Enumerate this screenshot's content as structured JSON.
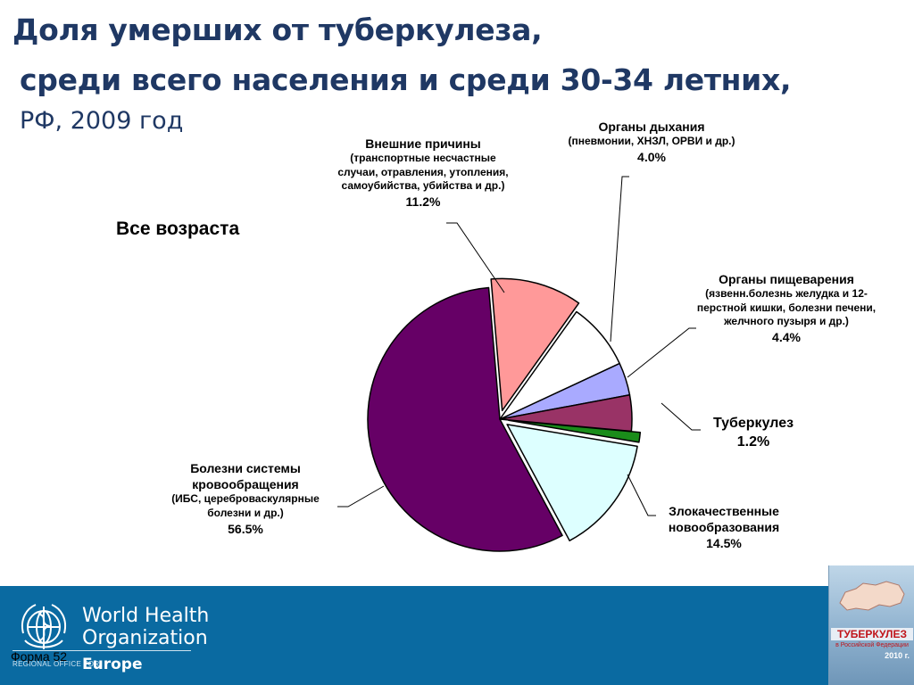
{
  "header": {
    "title_line1": "Доля умерших от туберкулеза,",
    "title_line2": "среди всего населения и среди 30-34 летних,",
    "title_line3": "РФ, 2009 год"
  },
  "chart_data": {
    "type": "pie",
    "subtitle": "Все возраста",
    "slices": [
      {
        "key": "respiratory",
        "label": "Органы дыхания",
        "detail": "(пневмонии, ХНЗЛ,  ОРВИ и др.)",
        "value": 4.0,
        "value_label": "4.0%",
        "color": "#a9aaff"
      },
      {
        "key": "digestive",
        "label": "Органы пищеварения",
        "detail": "(язвенн.болезнь желудка и 12-перстной кишки, болезни печени,  желчного пузыря и др.)",
        "value": 4.4,
        "value_label": "4.4%",
        "color": "#993366"
      },
      {
        "key": "tuberculosis",
        "label": "Туберкулез",
        "detail": "",
        "value": 1.2,
        "value_label": "1.2%",
        "color": "#1a8c1a",
        "exploded": true
      },
      {
        "key": "cancer",
        "label": "Злокачественные новообразования",
        "detail": "",
        "value": 14.5,
        "value_label": "14.5%",
        "color": "#ddffff",
        "exploded": true
      },
      {
        "key": "circulatory",
        "label": "Болезни системы кровообращения",
        "detail": "(ИБС, цереброваскулярные болезни и др.)",
        "value": 56.5,
        "value_label": "56.5%",
        "color": "#660066"
      },
      {
        "key": "external",
        "label": "Внешние причины",
        "detail": "(транспортные несчастные случаи, отравления, утопления, самоубийства, убийства и др.)",
        "value": 11.2,
        "value_label": "11.2%",
        "color": "#ff9999",
        "exploded": true
      },
      {
        "key": "other",
        "label": "",
        "detail": "",
        "value": 8.2,
        "value_label": "",
        "color": "#ffffff"
      }
    ]
  },
  "footer": {
    "org_line1": "World Health",
    "org_line2": "Organization",
    "region_small": "REGIONAL OFFICE FOR",
    "region": "Europe",
    "form_label": "Форма 52"
  },
  "book_cover": {
    "title": "ТУБЕРКУЛЕЗ",
    "subtitle": "в Российской Федерации",
    "year": "2010 г."
  }
}
